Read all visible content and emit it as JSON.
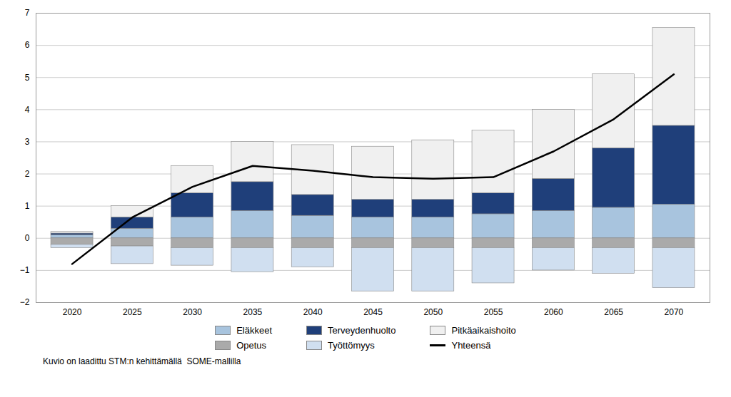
{
  "chart_data": {
    "type": "bar",
    "stacked": true,
    "x": [
      2020,
      2025,
      2030,
      2035,
      2040,
      2045,
      2050,
      2055,
      2060,
      2065,
      2070
    ],
    "xlim": [
      2017,
      2073
    ],
    "xticks": [
      2020,
      2025,
      2030,
      2035,
      2040,
      2045,
      2050,
      2055,
      2060,
      2065,
      2070
    ],
    "ylim": [
      -2,
      7
    ],
    "yticks": [
      -2,
      -1,
      0,
      1,
      2,
      3,
      4,
      5,
      6,
      7
    ],
    "grid": true,
    "legend": "bottom",
    "caption": "Kuvio on laadittu STM:n kehittämällä  SOME-mallilla",
    "series": [
      {
        "name": "Eläkkeet",
        "color": "#A8C4DE",
        "values": [
          0.1,
          0.3,
          0.65,
          0.85,
          0.7,
          0.65,
          0.65,
          0.75,
          0.85,
          0.95,
          1.05
        ]
      },
      {
        "name": "Terveydenhuolto",
        "color": "#1F3F7A",
        "values": [
          0.05,
          0.35,
          0.75,
          0.9,
          0.65,
          0.55,
          0.55,
          0.65,
          1.0,
          1.85,
          2.45
        ]
      },
      {
        "name": "Pitkäaikaishoito",
        "color": "#F0F0F0",
        "values": [
          0.05,
          0.35,
          0.85,
          1.25,
          1.55,
          1.65,
          1.85,
          1.95,
          2.15,
          2.3,
          3.05
        ]
      },
      {
        "name": "Opetus",
        "color": "#AAAAAA",
        "values": [
          -0.2,
          -0.25,
          -0.3,
          -0.3,
          -0.3,
          -0.3,
          -0.3,
          -0.3,
          -0.3,
          -0.3,
          -0.3
        ]
      },
      {
        "name": "Työttömyys",
        "color": "#D0DFF0",
        "values": [
          -0.1,
          -0.55,
          -0.55,
          -0.75,
          -0.6,
          -1.35,
          -1.35,
          -1.1,
          -0.7,
          -0.8,
          -1.25
        ]
      },
      {
        "name": "Yhteensä",
        "type": "line",
        "color": "black",
        "values": [
          -0.8,
          0.65,
          1.6,
          2.25,
          2.1,
          1.9,
          1.85,
          1.9,
          2.7,
          3.7,
          5.1
        ]
      }
    ]
  }
}
